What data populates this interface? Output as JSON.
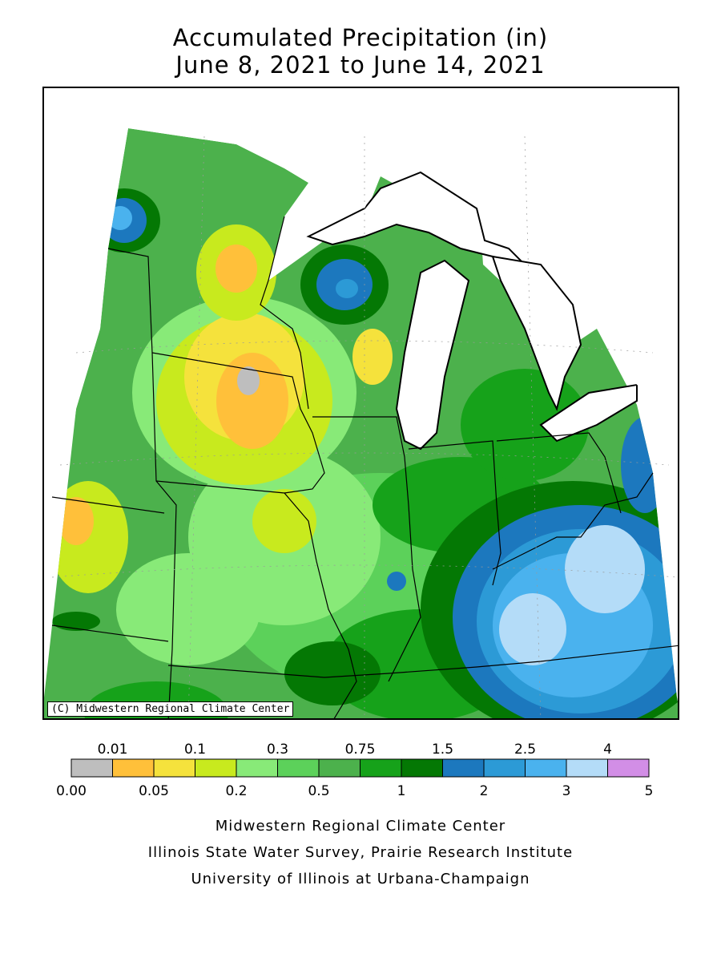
{
  "title": {
    "line1": "Accumulated Precipitation (in)",
    "line2": "June 8, 2021 to June 14, 2021"
  },
  "copyright": "(C) Midwestern Regional Climate Center",
  "legend": {
    "bins": [
      {
        "color": "#bebebe"
      },
      {
        "color": "#ffc03a"
      },
      {
        "color": "#f5e23c"
      },
      {
        "color": "#c8ea1e"
      },
      {
        "color": "#88ea78"
      },
      {
        "color": "#5cd15a"
      },
      {
        "color": "#4cb14c"
      },
      {
        "color": "#16a21a"
      },
      {
        "color": "#047804"
      },
      {
        "color": "#1c78be"
      },
      {
        "color": "#2c9ad6"
      },
      {
        "color": "#4ab2ee"
      },
      {
        "color": "#b4dcf8"
      },
      {
        "color": "#d28ee6"
      }
    ],
    "top_labels": [
      {
        "text": "0.01",
        "boundary": 1
      },
      {
        "text": "0.1",
        "boundary": 3
      },
      {
        "text": "0.3",
        "boundary": 5
      },
      {
        "text": "0.75",
        "boundary": 7
      },
      {
        "text": "1.5",
        "boundary": 9
      },
      {
        "text": "2.5",
        "boundary": 11
      },
      {
        "text": "4",
        "boundary": 13
      }
    ],
    "bottom_labels": [
      {
        "text": "0.00",
        "boundary": 0
      },
      {
        "text": "0.05",
        "boundary": 2
      },
      {
        "text": "0.2",
        "boundary": 4
      },
      {
        "text": "0.5",
        "boundary": 6
      },
      {
        "text": "1",
        "boundary": 8
      },
      {
        "text": "2",
        "boundary": 10
      },
      {
        "text": "3",
        "boundary": 12
      },
      {
        "text": "5",
        "boundary": 14
      }
    ]
  },
  "footer": {
    "line1": "Midwestern Regional Climate Center",
    "line2": "Illinois State Water Survey, Prairie Research Institute",
    "line3": "University of Illinois at Urbana-Champaign"
  },
  "colors": {
    "water": "#ffffff",
    "border": "#000000"
  }
}
